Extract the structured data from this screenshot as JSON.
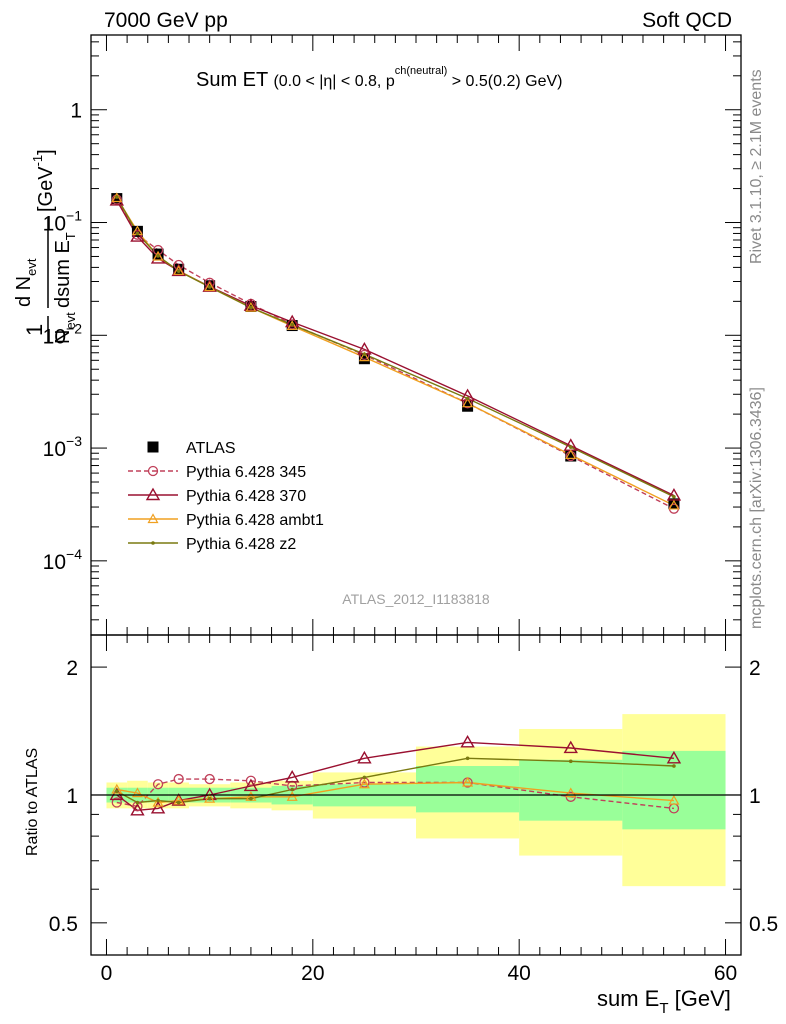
{
  "header": {
    "left": "7000 GeV pp",
    "right": "Soft QCD"
  },
  "side_labels": {
    "rivet": "Rivet 3.1.10, ≥ 2.1M events",
    "mcplots": "mcplots.cern.ch [arXiv:1306.3436]"
  },
  "chart_data": [
    {
      "type": "line",
      "panel": "main",
      "title": {
        "main": "Sum ET",
        "detail_a": "(0.0 < |η| < 0.8, p",
        "detail_sup": "ch(neutral)",
        "detail_b": " > 0.5(0.2) GeV)"
      },
      "ylabel": "1/N_evt dN_evt/dsum E_T [GeV^-1]",
      "xlabel": "sum E_T [GeV]",
      "yscale": "log",
      "xlim": [
        -1.5,
        61.5
      ],
      "ylim": [
        2.2e-05,
        4.6
      ],
      "yticks": [
        {
          "v": 0.0001,
          "base": "10",
          "exp": "−4"
        },
        {
          "v": 0.001,
          "base": "10",
          "exp": "−3"
        },
        {
          "v": 0.01,
          "base": "10",
          "exp": "−2"
        },
        {
          "v": 0.1,
          "base": "10",
          "exp": "−1"
        },
        {
          "v": 1,
          "base": "1",
          "exp": ""
        }
      ],
      "annotation": "ATLAS_2012_I1183818",
      "legend_position": "lower-left",
      "x": [
        1,
        3,
        5,
        7,
        10,
        14,
        18,
        25,
        35,
        45,
        55
      ],
      "series": [
        {
          "name": "ATLAS",
          "color": "#000000",
          "marker": "square",
          "values": [
            0.163,
            0.0835,
            0.0525,
            0.0385,
            0.0275,
            0.018,
            0.0122,
            0.0062,
            0.00235,
            0.00085,
            0.00032
          ]
        },
        {
          "name": "Pythia 6.428 345",
          "color": "#c0405a",
          "marker": "circle",
          "dashed": true,
          "values": [
            0.16,
            0.078,
            0.057,
            0.042,
            0.0292,
            0.019,
            0.0125,
            0.0067,
            0.0025,
            0.00085,
            0.00029
          ]
        },
        {
          "name": "Pythia 6.428 370",
          "color": "#9a1030",
          "marker": "triangle",
          "values": [
            0.157,
            0.075,
            0.048,
            0.0372,
            0.027,
            0.0183,
            0.0131,
            0.0075,
            0.0029,
            0.00105,
            0.00038
          ]
        },
        {
          "name": "Pythia 6.428 ambt1",
          "color": "#f0a020",
          "marker": "triangle-small",
          "values": [
            0.165,
            0.084,
            0.05,
            0.0373,
            0.0268,
            0.0176,
            0.0121,
            0.0064,
            0.0025,
            0.00087,
            0.00031
          ]
        },
        {
          "name": "Pythia 6.428 z2",
          "color": "#7a7a10",
          "marker": "dot",
          "values": [
            0.168,
            0.08,
            0.0505,
            0.037,
            0.0268,
            0.0176,
            0.0124,
            0.0068,
            0.00275,
            0.00102,
            0.00037
          ]
        }
      ]
    },
    {
      "type": "line",
      "panel": "ratio",
      "ylabel": "Ratio to ATLAS",
      "xlabel": "sum E_T [GeV]",
      "yscale": "log",
      "xlim": [
        -1.5,
        61.5
      ],
      "ylim": [
        0.42,
        2.38
      ],
      "yticks": [
        0.5,
        1,
        2
      ],
      "xticks": [
        0,
        20,
        40,
        60
      ],
      "bands": [
        {
          "x0": 0,
          "x1": 2,
          "stat": [
            0.96,
            1.04
          ],
          "syst": [
            0.93,
            1.07
          ]
        },
        {
          "x0": 2,
          "x1": 4,
          "stat": [
            0.96,
            1.04
          ],
          "syst": [
            0.93,
            1.08
          ]
        },
        {
          "x0": 4,
          "x1": 6,
          "stat": [
            0.96,
            1.04
          ],
          "syst": [
            0.93,
            1.07
          ]
        },
        {
          "x0": 6,
          "x1": 8,
          "stat": [
            0.96,
            1.04
          ],
          "syst": [
            0.93,
            1.07
          ]
        },
        {
          "x0": 8,
          "x1": 12,
          "stat": [
            0.96,
            1.04
          ],
          "syst": [
            0.94,
            1.06
          ]
        },
        {
          "x0": 12,
          "x1": 16,
          "stat": [
            0.96,
            1.04
          ],
          "syst": [
            0.93,
            1.07
          ]
        },
        {
          "x0": 16,
          "x1": 20,
          "stat": [
            0.95,
            1.05
          ],
          "syst": [
            0.92,
            1.08
          ]
        },
        {
          "x0": 20,
          "x1": 30,
          "stat": [
            0.94,
            1.06
          ],
          "syst": [
            0.88,
            1.13
          ]
        },
        {
          "x0": 30,
          "x1": 40,
          "stat": [
            0.91,
            1.17
          ],
          "syst": [
            0.79,
            1.3
          ]
        },
        {
          "x0": 40,
          "x1": 50,
          "stat": [
            0.87,
            1.21
          ],
          "syst": [
            0.72,
            1.43
          ]
        },
        {
          "x0": 50,
          "x1": 60,
          "stat": [
            0.83,
            1.27
          ],
          "syst": [
            0.61,
            1.55
          ]
        }
      ],
      "x": [
        1,
        3,
        5,
        7,
        10,
        14,
        18,
        25,
        35,
        45,
        55
      ],
      "series": [
        {
          "name": "Pythia 6.428 345",
          "color": "#c0405a",
          "marker": "circle",
          "dashed": true,
          "values": [
            0.96,
            0.94,
            1.06,
            1.09,
            1.09,
            1.08,
            1.05,
            1.07,
            1.07,
            0.99,
            0.93
          ]
        },
        {
          "name": "Pythia 6.428 370",
          "color": "#9a1030",
          "marker": "triangle",
          "values": [
            1.0,
            0.92,
            0.93,
            0.97,
            1.0,
            1.05,
            1.1,
            1.22,
            1.33,
            1.29,
            1.22
          ]
        },
        {
          "name": "Pythia 6.428 ambt1",
          "color": "#f0a020",
          "marker": "triangle-small",
          "values": [
            1.03,
            1.01,
            0.96,
            0.97,
            0.98,
            0.99,
            0.99,
            1.06,
            1.07,
            1.01,
            0.97
          ]
        },
        {
          "name": "Pythia 6.428 z2",
          "color": "#7a7a10",
          "marker": "dot",
          "values": [
            1.02,
            0.96,
            0.97,
            0.96,
            0.98,
            0.98,
            1.03,
            1.1,
            1.22,
            1.2,
            1.17
          ]
        }
      ]
    }
  ]
}
